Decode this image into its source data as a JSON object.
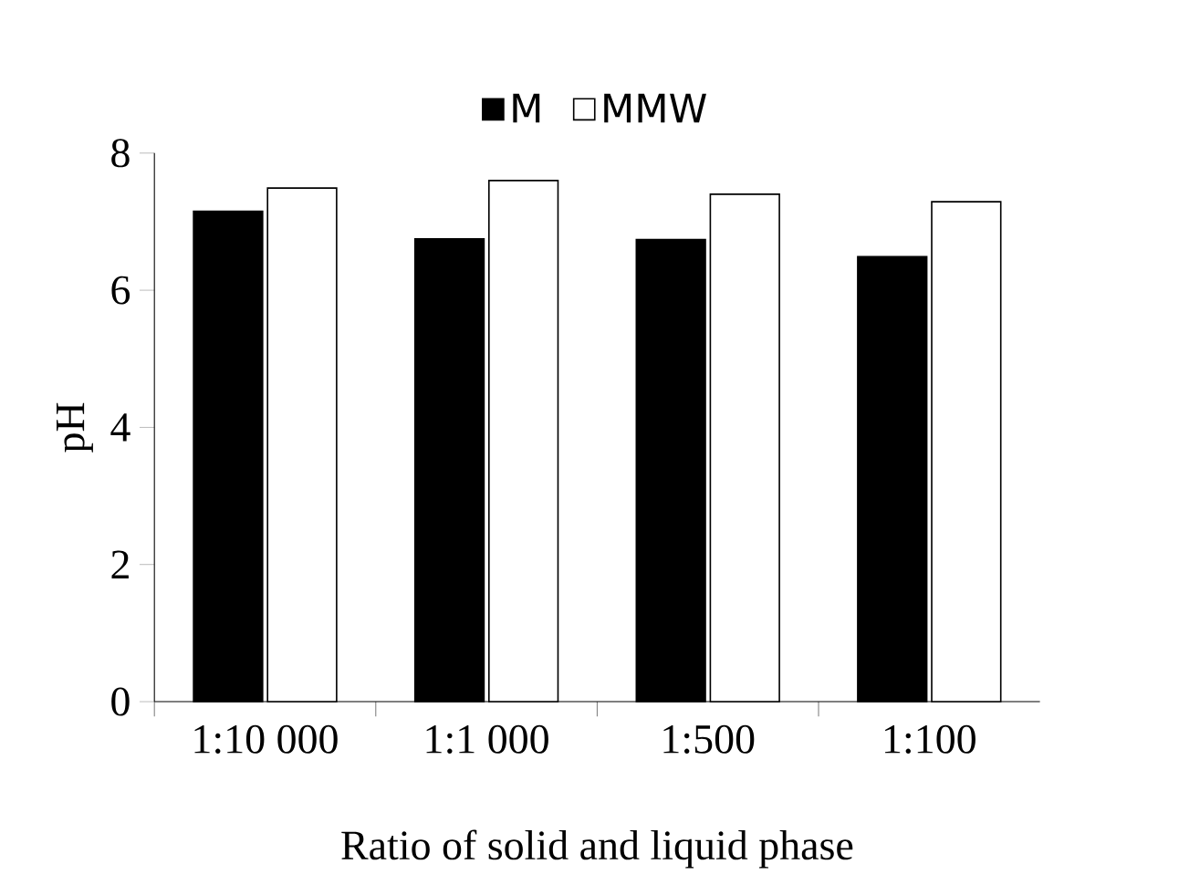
{
  "chart_data": {
    "type": "bar",
    "xlabel": "Ratio of solid and liquid phase",
    "ylabel": "pH",
    "categories": [
      "1:10 000",
      "1:1 000",
      "1:500",
      "1:100"
    ],
    "series": [
      {
        "name": "M",
        "color": "#000000",
        "values": [
          7.15,
          6.75,
          6.74,
          6.49
        ]
      },
      {
        "name": "MMW",
        "color": "#ffffff",
        "values": [
          7.49,
          7.6,
          7.4,
          7.29
        ]
      }
    ],
    "ylim": [
      0,
      8
    ],
    "yticks": [
      0,
      2,
      4,
      6,
      8
    ],
    "legend": "top",
    "grid": false
  }
}
